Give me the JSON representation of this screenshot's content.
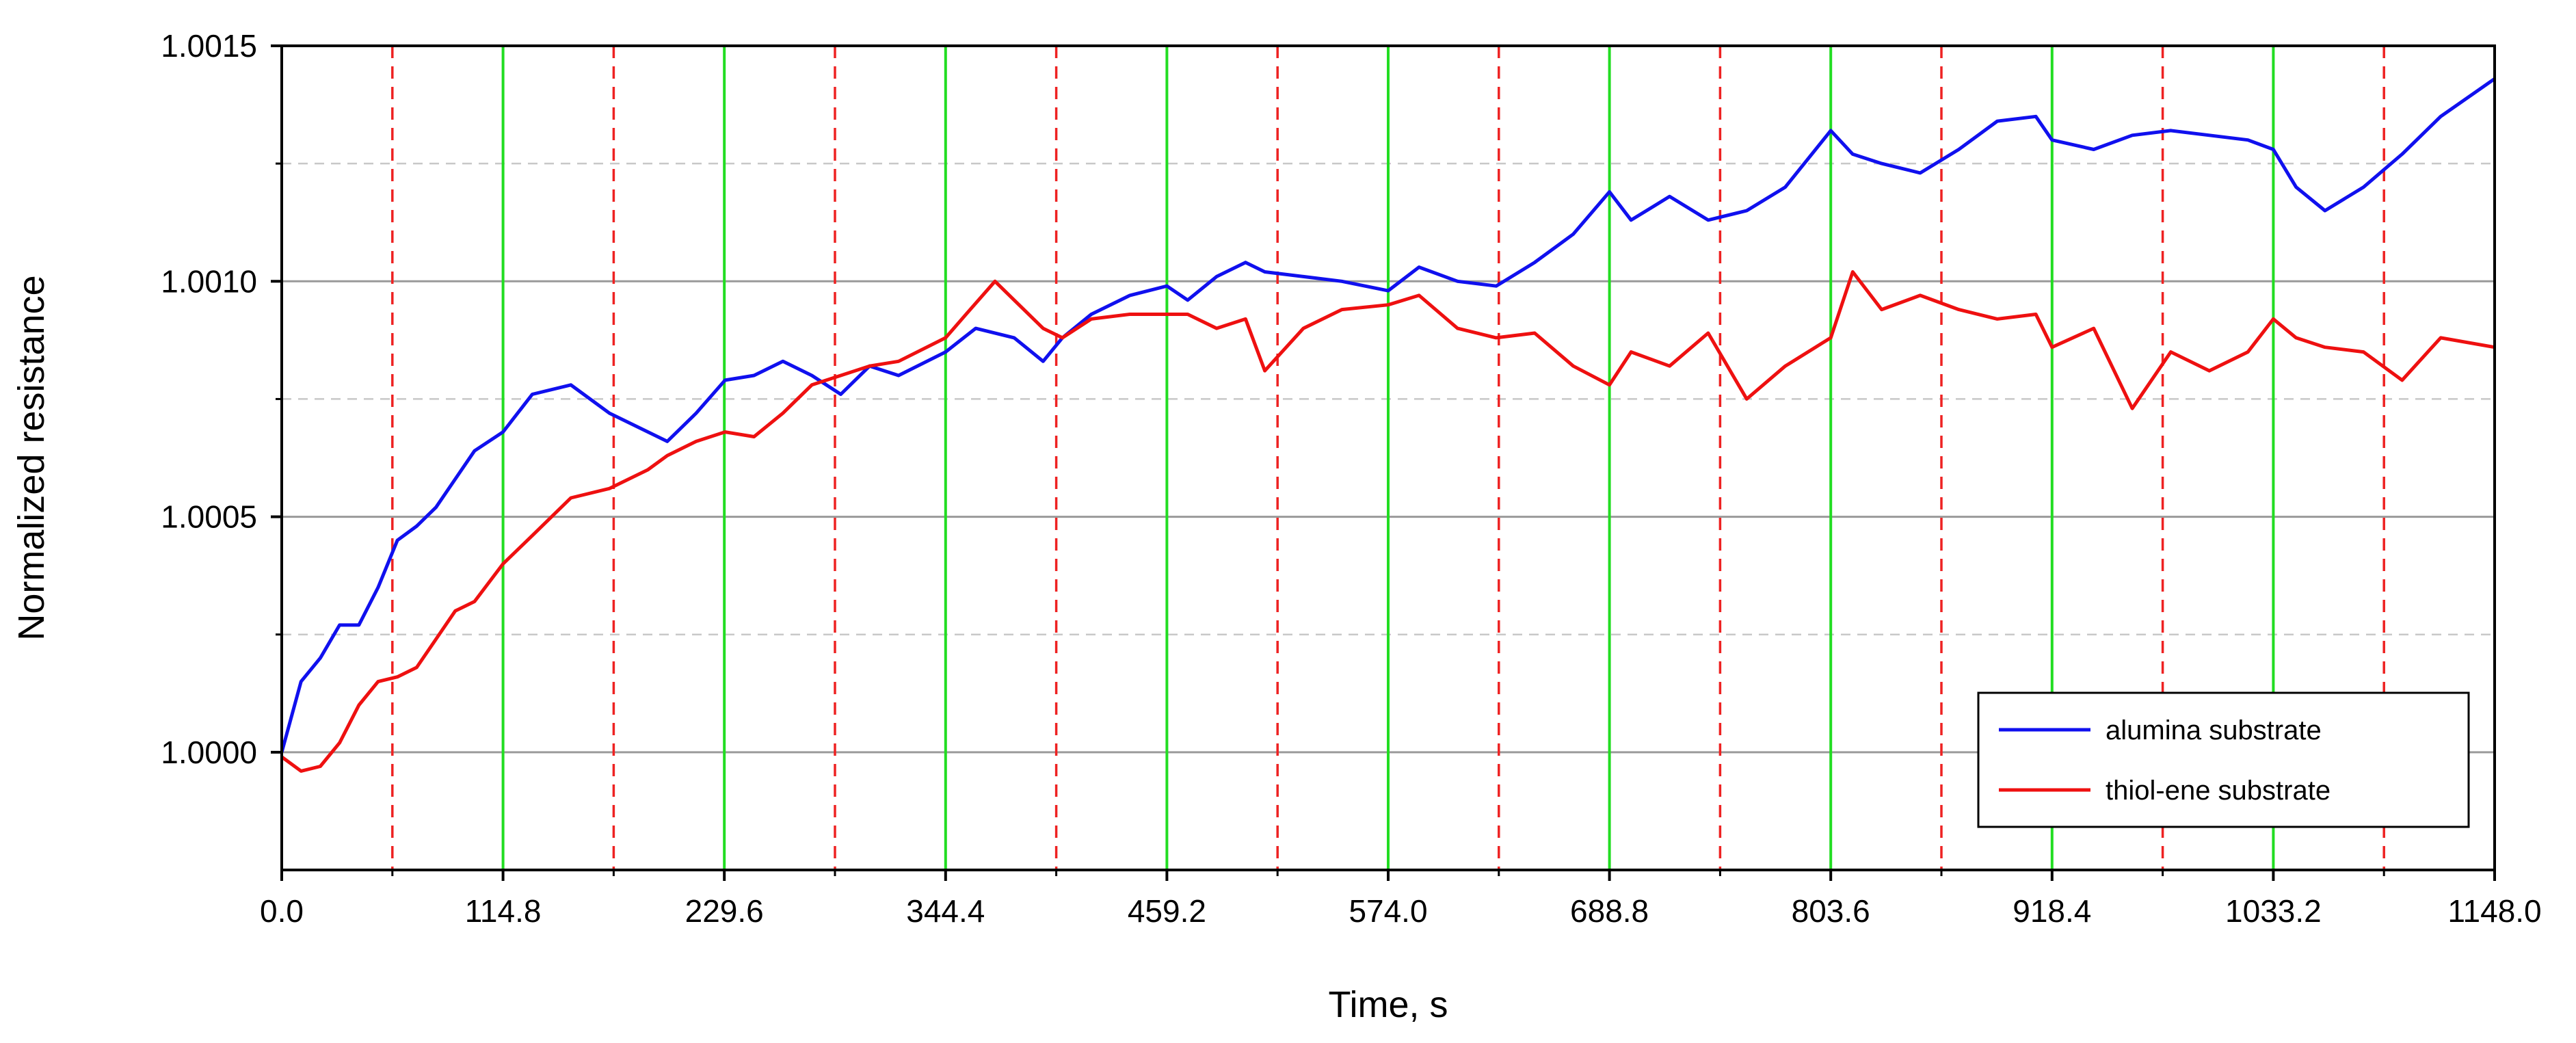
{
  "chart_data": {
    "type": "line",
    "xlabel": "Time, s",
    "ylabel": "Normalized resistance",
    "xlim": [
      0,
      1148
    ],
    "ylim": [
      0.99975,
      1.0015
    ],
    "x_ticks": [
      "0.0",
      "114.8",
      "229.6",
      "344.4",
      "459.2",
      "574.0",
      "688.8",
      "803.6",
      "918.4",
      "1033.2",
      "1148.0"
    ],
    "y_ticks": [
      "1.0000",
      "1.0005",
      "1.0010",
      "1.0015"
    ],
    "grid": true,
    "legend_position": "bottom-right",
    "marker_lines": {
      "green_x": [
        114.8,
        229.6,
        344.4,
        459.2,
        574.0,
        688.8,
        803.6,
        918.4,
        1033.2
      ],
      "red_dashed_x": [
        57.4,
        172.2,
        287.0,
        401.8,
        516.6,
        631.4,
        746.2,
        861.0,
        975.8,
        1090.6
      ],
      "green_color": "#22dd22",
      "red_color": "#ee2222"
    },
    "series": [
      {
        "name": "alumina substrate",
        "color": "#1010ee",
        "x": [
          0,
          10,
          20,
          30,
          40,
          50,
          60,
          70,
          80,
          90,
          100,
          114.8,
          130,
          150,
          170,
          190,
          200,
          215,
          230,
          245,
          260,
          275,
          290,
          305,
          320,
          344.4,
          360,
          380,
          395,
          405,
          420,
          440,
          459.2,
          470,
          485,
          500,
          510,
          530,
          550,
          574,
          590,
          610,
          630,
          650,
          670,
          688.8,
          700,
          720,
          740,
          760,
          780,
          803.6,
          815,
          830,
          850,
          870,
          890,
          910,
          918.4,
          940,
          960,
          980,
          1000,
          1020,
          1033.2,
          1045,
          1060,
          1080,
          1100,
          1120,
          1148
        ],
        "values": [
          1.0,
          1.00015,
          1.0002,
          1.00027,
          1.00027,
          1.00035,
          1.00045,
          1.00048,
          1.00052,
          1.00058,
          1.00064,
          1.00068,
          1.00076,
          1.00078,
          1.00072,
          1.00068,
          1.00066,
          1.00072,
          1.00079,
          1.0008,
          1.00083,
          1.0008,
          1.00076,
          1.00082,
          1.0008,
          1.00085,
          1.0009,
          1.00088,
          1.00083,
          1.00088,
          1.00093,
          1.00097,
          1.00099,
          1.00096,
          1.00101,
          1.00104,
          1.00102,
          1.00101,
          1.001,
          1.00098,
          1.00103,
          1.001,
          1.00099,
          1.00104,
          1.0011,
          1.00119,
          1.00113,
          1.00118,
          1.00113,
          1.00115,
          1.0012,
          1.00132,
          1.00127,
          1.00125,
          1.00123,
          1.00128,
          1.00134,
          1.00135,
          1.0013,
          1.00128,
          1.00131,
          1.00132,
          1.00131,
          1.0013,
          1.00128,
          1.0012,
          1.00115,
          1.0012,
          1.00127,
          1.00135,
          1.00143
        ]
      },
      {
        "name": "thiol-ene substrate",
        "color": "#ee1010",
        "x": [
          0,
          10,
          20,
          30,
          40,
          50,
          60,
          70,
          80,
          90,
          100,
          114.8,
          130,
          150,
          170,
          190,
          200,
          215,
          230,
          245,
          260,
          275,
          290,
          305,
          320,
          344.4,
          355,
          370,
          380,
          395,
          405,
          420,
          440,
          459.2,
          470,
          485,
          500,
          510,
          530,
          550,
          574,
          590,
          610,
          630,
          650,
          670,
          688.8,
          700,
          720,
          740,
          760,
          780,
          803.6,
          815,
          830,
          850,
          870,
          890,
          910,
          918.4,
          940,
          960,
          980,
          1000,
          1020,
          1033.2,
          1045,
          1060,
          1080,
          1100,
          1120,
          1148
        ],
        "values": [
          0.99999,
          0.99996,
          0.99997,
          1.00002,
          1.0001,
          1.00015,
          1.00016,
          1.00018,
          1.00024,
          1.0003,
          1.00032,
          1.0004,
          1.00046,
          1.00054,
          1.00056,
          1.0006,
          1.00063,
          1.00066,
          1.00068,
          1.00067,
          1.00072,
          1.00078,
          1.0008,
          1.00082,
          1.00083,
          1.00088,
          1.00093,
          1.001,
          1.00096,
          1.0009,
          1.00088,
          1.00092,
          1.00093,
          1.00093,
          1.00093,
          1.0009,
          1.00092,
          1.00081,
          1.0009,
          1.00094,
          1.00095,
          1.00097,
          1.0009,
          1.00088,
          1.00089,
          1.00082,
          1.00078,
          1.00085,
          1.00082,
          1.00089,
          1.00075,
          1.00082,
          1.00088,
          1.00102,
          1.00094,
          1.00097,
          1.00094,
          1.00092,
          1.00093,
          1.00086,
          1.0009,
          1.00073,
          1.00085,
          1.00081,
          1.00085,
          1.00092,
          1.00088,
          1.00086,
          1.00085,
          1.00079,
          1.00088,
          1.00086
        ]
      }
    ]
  }
}
